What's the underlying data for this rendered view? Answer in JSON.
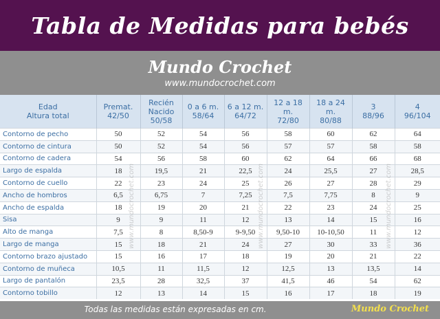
{
  "title": "Tabla de Medidas para bebés",
  "brand": {
    "name": "Mundo Crochet",
    "url": "www.mundocrochet.com"
  },
  "watermark": "www.mundocrochet.com",
  "table": {
    "headers": [
      {
        "top": "Edad",
        "bottom": "Altura total"
      },
      {
        "top": "Premat.",
        "bottom": "42/50"
      },
      {
        "top": "Recién Nacido",
        "bottom": "50/58"
      },
      {
        "top": "0 a 6 m.",
        "bottom": "58/64"
      },
      {
        "top": "6 a 12 m.",
        "bottom": "64/72"
      },
      {
        "top": "12 a 18 m.",
        "bottom": "72/80"
      },
      {
        "top": "18 a 24 m.",
        "bottom": "80/88"
      },
      {
        "top": "3",
        "bottom": "88/96"
      },
      {
        "top": "4",
        "bottom": "96/104"
      }
    ],
    "rows": [
      {
        "label": "Contorno de pecho",
        "values": [
          "50",
          "52",
          "54",
          "56",
          "58",
          "60",
          "62",
          "64"
        ]
      },
      {
        "label": "Contorno de cintura",
        "values": [
          "50",
          "52",
          "54",
          "56",
          "57",
          "57",
          "58",
          "58"
        ]
      },
      {
        "label": "Contorno de cadera",
        "values": [
          "54",
          "56",
          "58",
          "60",
          "62",
          "64",
          "66",
          "68"
        ]
      },
      {
        "label": "Largo de espalda",
        "values": [
          "18",
          "19,5",
          "21",
          "22,5",
          "24",
          "25,5",
          "27",
          "28,5"
        ]
      },
      {
        "label": "Contorno de cuello",
        "values": [
          "22",
          "23",
          "24",
          "25",
          "26",
          "27",
          "28",
          "29"
        ]
      },
      {
        "label": "Ancho de hombros",
        "values": [
          "6,5",
          "6,75",
          "7",
          "7,25",
          "7,5",
          "7,75",
          "8",
          "9"
        ]
      },
      {
        "label": "Ancho de espalda",
        "values": [
          "18",
          "19",
          "20",
          "21",
          "22",
          "23",
          "24",
          "25"
        ]
      },
      {
        "label": "Sisa",
        "values": [
          "9",
          "9",
          "11",
          "12",
          "13",
          "14",
          "15",
          "16"
        ]
      },
      {
        "label": "Alto de manga",
        "values": [
          "7,5",
          "8",
          "8,50-9",
          "9-9,50",
          "9,50-10",
          "10-10,50",
          "11",
          "12"
        ]
      },
      {
        "label": "Largo de manga",
        "values": [
          "15",
          "18",
          "21",
          "24",
          "27",
          "30",
          "33",
          "36"
        ]
      },
      {
        "label": "Contorno brazo ajustado",
        "values": [
          "15",
          "16",
          "17",
          "18",
          "19",
          "20",
          "21",
          "22"
        ]
      },
      {
        "label": "Contorno de muñeca",
        "values": [
          "10,5",
          "11",
          "11,5",
          "12",
          "12,5",
          "13",
          "13,5",
          "14"
        ]
      },
      {
        "label": "Largo de pantalón",
        "values": [
          "23,5",
          "28",
          "32,5",
          "37",
          "41,5",
          "46",
          "54",
          "62"
        ]
      },
      {
        "label": "Contorno tobillo",
        "values": [
          "12",
          "13",
          "14",
          "15",
          "16",
          "17",
          "18",
          "19"
        ]
      }
    ]
  },
  "footer": {
    "note": "Todas las medidas están expresadas en cm.",
    "brand": "Mundo Crochet"
  },
  "colors": {
    "title_bg": "#54124f",
    "brand_bg": "#8f8f8f",
    "header_bg": "#d7e3f0",
    "label_text": "#3b6ea3",
    "footer_brand": "#f4e04d"
  }
}
